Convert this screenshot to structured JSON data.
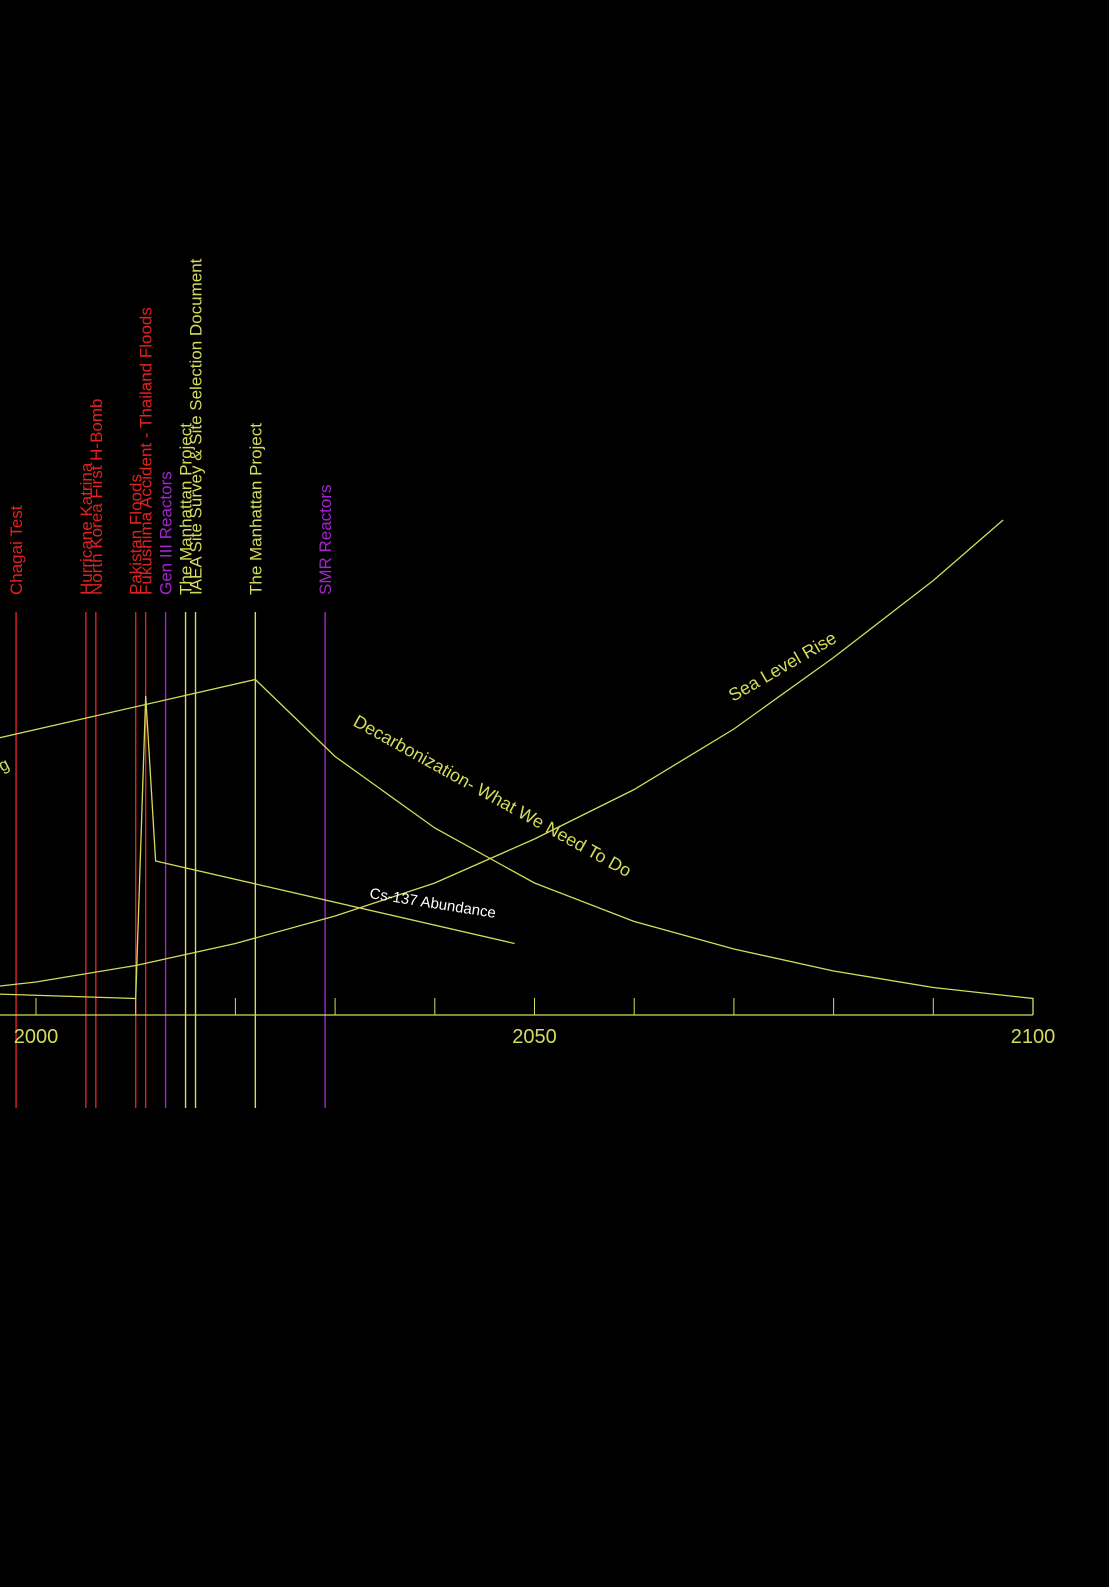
{
  "chart_data": {
    "type": "line",
    "title": "",
    "xlabel": "",
    "ylabel": "",
    "x_ticks": [
      2000,
      2050,
      2100
    ],
    "x_minor_step": 10,
    "colors": {
      "axis": "#d4dc5a",
      "yellow": "#d4dc5a",
      "red": "#e0231f",
      "purple": "#a524cf",
      "white": "#ffffff"
    },
    "events": [
      {
        "label": "Chagai Test",
        "year": 1998,
        "color": "red"
      },
      {
        "label": "Hurricane Katrina",
        "year": 2005,
        "color": "red"
      },
      {
        "label": "North Korea First H-Bomb",
        "year": 2006,
        "color": "red"
      },
      {
        "label": "Pakistan Floods",
        "year": 2010,
        "color": "red"
      },
      {
        "label": "Fukushima Accident - Thailand Floods",
        "year": 2011,
        "color": "red"
      },
      {
        "label": "Gen III Reactors",
        "year": 2013,
        "color": "purple"
      },
      {
        "label": "The Manhattan Project",
        "year": 2015,
        "color": "yellow"
      },
      {
        "label": "IAEA Site Survey & Site Selection Document",
        "year": 2016,
        "color": "yellow"
      },
      {
        "label": "The Manhattan Project",
        "year": 2022,
        "color": "yellow"
      },
      {
        "label": "SMR Reactors",
        "year": 2029,
        "color": "purple"
      }
    ],
    "series": [
      {
        "name": "Sea Level Rise",
        "color": "yellow",
        "label_color": "yellow",
        "x": [
          1976,
          1990,
          2000,
          2010,
          2020,
          2030,
          2040,
          2050,
          2060,
          2070,
          2080,
          2090,
          2097
        ],
        "y": [
          2,
          4,
          6,
          9,
          13,
          18,
          24,
          32,
          41,
          52,
          65,
          79,
          90
        ]
      },
      {
        "name": "Decarbonization- What We Need To Do",
        "color": "yellow",
        "label_color": "yellow",
        "x": [
          1976,
          2022,
          2030,
          2040,
          2050,
          2060,
          2070,
          2080,
          2090,
          2100,
          2100
        ],
        "y": [
          42,
          61,
          47,
          34,
          24,
          17,
          12,
          8,
          5,
          3,
          0
        ]
      },
      {
        "name": "Cs-137 Abundance",
        "color": "yellow",
        "label_color": "white",
        "x": [
          1976,
          2010,
          2011,
          2012,
          2048
        ],
        "y": [
          5,
          3,
          58,
          28,
          13
        ]
      }
    ],
    "partial_label": "g"
  }
}
